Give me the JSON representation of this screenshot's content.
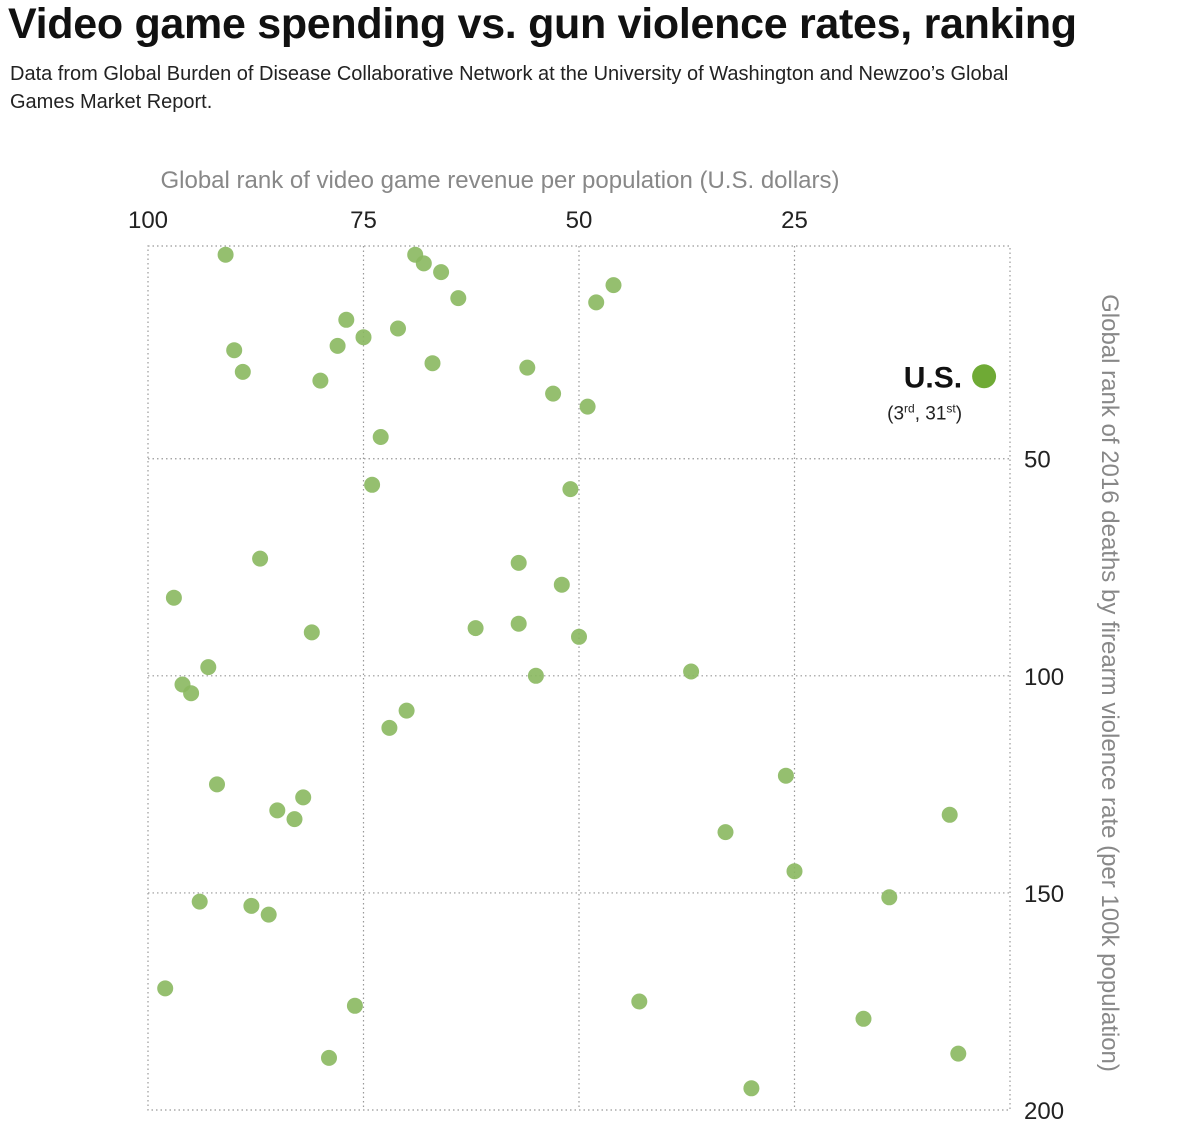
{
  "title": "Video game spending vs. gun violence rates, ranking",
  "subtitle": "Data from Global Burden of Disease Collaborative Network at the University of Washington and Newzoo’s Global Games Market Report.",
  "chart_data": {
    "type": "scatter",
    "title": "Video game spending vs. gun violence rates, ranking",
    "xlabel": "Global rank of video game revenue per population (U.S. dollars)",
    "ylabel": "Global rank of 2016 deaths by firearm violence rate (per 100k population)",
    "xlim": [
      100,
      0
    ],
    "ylim": [
      1,
      200
    ],
    "xticks": [
      100,
      75,
      50,
      25
    ],
    "yticks": [
      50,
      100,
      150,
      200
    ],
    "grid": true,
    "point_color": "#8ab85f",
    "highlight_color": "#6faa35",
    "points": [
      {
        "x": 91,
        "y": 3
      },
      {
        "x": 69,
        "y": 3
      },
      {
        "x": 68,
        "y": 5
      },
      {
        "x": 66,
        "y": 7
      },
      {
        "x": 64,
        "y": 13
      },
      {
        "x": 46,
        "y": 10
      },
      {
        "x": 48,
        "y": 14
      },
      {
        "x": 77,
        "y": 18
      },
      {
        "x": 71,
        "y": 20
      },
      {
        "x": 75,
        "y": 22
      },
      {
        "x": 78,
        "y": 24
      },
      {
        "x": 90,
        "y": 25
      },
      {
        "x": 67,
        "y": 28
      },
      {
        "x": 56,
        "y": 29
      },
      {
        "x": 89,
        "y": 30
      },
      {
        "x": 80,
        "y": 32
      },
      {
        "x": 53,
        "y": 35
      },
      {
        "x": 49,
        "y": 38
      },
      {
        "x": 73,
        "y": 45
      },
      {
        "x": 74,
        "y": 56
      },
      {
        "x": 51,
        "y": 57
      },
      {
        "x": 87,
        "y": 73
      },
      {
        "x": 57,
        "y": 74
      },
      {
        "x": 52,
        "y": 79
      },
      {
        "x": 97,
        "y": 82
      },
      {
        "x": 62,
        "y": 89
      },
      {
        "x": 57,
        "y": 88
      },
      {
        "x": 81,
        "y": 90
      },
      {
        "x": 50,
        "y": 91
      },
      {
        "x": 93,
        "y": 98
      },
      {
        "x": 37,
        "y": 99
      },
      {
        "x": 96,
        "y": 102
      },
      {
        "x": 55,
        "y": 100
      },
      {
        "x": 95,
        "y": 104
      },
      {
        "x": 70,
        "y": 108
      },
      {
        "x": 72,
        "y": 112
      },
      {
        "x": 26,
        "y": 123
      },
      {
        "x": 92,
        "y": 125
      },
      {
        "x": 82,
        "y": 128
      },
      {
        "x": 85,
        "y": 131
      },
      {
        "x": 83,
        "y": 133
      },
      {
        "x": 7,
        "y": 132
      },
      {
        "x": 33,
        "y": 136
      },
      {
        "x": 25,
        "y": 145
      },
      {
        "x": 94,
        "y": 152
      },
      {
        "x": 14,
        "y": 151
      },
      {
        "x": 88,
        "y": 153
      },
      {
        "x": 86,
        "y": 155
      },
      {
        "x": 98,
        "y": 172
      },
      {
        "x": 43,
        "y": 175
      },
      {
        "x": 76,
        "y": 176
      },
      {
        "x": 17,
        "y": 179
      },
      {
        "x": 79,
        "y": 188
      },
      {
        "x": 6,
        "y": 187
      },
      {
        "x": 30,
        "y": 195
      }
    ],
    "highlight": {
      "label": "U.S.",
      "x": 3,
      "y": 31,
      "note_parts": [
        "(3",
        "rd",
        ", 31",
        "st",
        ")"
      ]
    }
  }
}
